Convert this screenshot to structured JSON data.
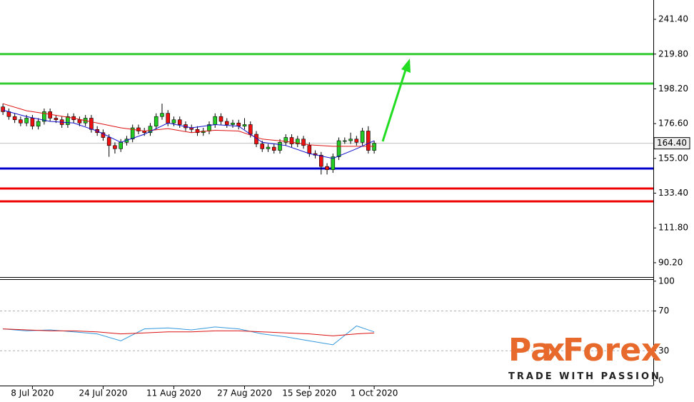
{
  "chart_data": [
    {
      "type": "candlestick",
      "xlim": [
        -0.5,
        110
      ],
      "xticks": [
        {
          "value": 5,
          "label": "8 Jul 2020"
        },
        {
          "value": 17,
          "label": "24 Jul 2020"
        },
        {
          "value": 29,
          "label": "11 Aug 2020"
        },
        {
          "value": 41,
          "label": "27 Aug 2020"
        },
        {
          "value": 52,
          "label": "15 Sep 2020"
        },
        {
          "value": 63,
          "label": "1 Oct 2020"
        }
      ],
      "ylim": [
        81.3,
        253.4
      ],
      "yticks": [
        {
          "value": 90.2,
          "label": "90.20"
        },
        {
          "value": 111.8,
          "label": "111.80"
        },
        {
          "value": 133.4,
          "label": "133.40"
        },
        {
          "value": 155,
          "label": "155.00"
        },
        {
          "value": 176.6,
          "label": "176.60"
        },
        {
          "value": 198.2,
          "label": "198.20"
        },
        {
          "value": 219.8,
          "label": "219.80"
        },
        {
          "value": 241.4,
          "label": "241.40"
        }
      ],
      "up_color": "#22cc22",
      "down_color": "#ee1111",
      "open": [
        187,
        184,
        181,
        179,
        177,
        180,
        175,
        178,
        184,
        180,
        179,
        176,
        181,
        179,
        177,
        180,
        173,
        171,
        168,
        163,
        161,
        165,
        167,
        174,
        172,
        171,
        175,
        181,
        183,
        177,
        179,
        176,
        174,
        173,
        171,
        172,
        176,
        181,
        178,
        176,
        177,
        175,
        176,
        170,
        164,
        161,
        162,
        160,
        165,
        168,
        164,
        167,
        163,
        158,
        157,
        150,
        148,
        156,
        166,
        166,
        167,
        165,
        172,
        160
      ],
      "high": [
        189,
        186,
        183,
        181,
        182,
        182,
        180,
        186,
        186,
        182,
        181,
        183,
        183,
        181,
        182,
        182,
        175,
        173,
        170,
        165,
        167,
        169,
        176,
        176,
        174,
        177,
        183,
        189,
        185,
        181,
        181,
        178,
        176,
        175,
        174,
        178,
        183,
        183,
        180,
        179,
        179,
        180,
        178,
        172,
        166,
        164,
        164,
        167,
        170,
        170,
        169,
        169,
        165,
        160,
        159,
        152,
        158,
        168,
        168,
        171,
        169,
        174,
        175,
        166
      ],
      "low": [
        182,
        179,
        177,
        175,
        175,
        173,
        173,
        176,
        178,
        177,
        174,
        174,
        177,
        175,
        175,
        171,
        169,
        166,
        156,
        158,
        159,
        163,
        165,
        170,
        169,
        169,
        173,
        179,
        175,
        175,
        174,
        172,
        171,
        169,
        169,
        170,
        174,
        176,
        174,
        174,
        173,
        173,
        168,
        162,
        159,
        159,
        158,
        158,
        163,
        162,
        162,
        161,
        156,
        155,
        145,
        145,
        146,
        154,
        164,
        164,
        163,
        163,
        158,
        158
      ],
      "close": [
        184,
        181,
        179,
        177,
        180,
        175,
        178,
        184,
        180,
        179,
        176,
        181,
        179,
        177,
        180,
        173,
        171,
        168,
        163,
        161,
        165,
        167,
        174,
        172,
        171,
        175,
        181,
        183,
        177,
        179,
        176,
        174,
        173,
        171,
        172,
        176,
        181,
        178,
        176,
        177,
        175,
        176,
        170,
        164,
        161,
        162,
        160,
        165,
        168,
        164,
        167,
        163,
        158,
        157,
        150,
        148,
        156,
        166,
        166,
        167,
        165,
        172,
        160,
        164.4
      ],
      "series": [
        {
          "color": "#dd1111",
          "x": [
            0,
            4,
            8,
            12,
            16,
            20,
            24,
            28,
            32,
            36,
            40,
            44,
            48,
            52,
            56,
            60,
            63
          ],
          "values": [
            189,
            184.6,
            182.4,
            180,
            177,
            174,
            172,
            173.5,
            171,
            172.5,
            172,
            167,
            165.6,
            163.4,
            162.5,
            162.5,
            162.5
          ]
        },
        {
          "color": "#1111cc",
          "x": [
            0,
            4,
            8,
            12,
            16,
            20,
            24,
            28,
            32,
            36,
            40,
            44,
            48,
            52,
            56,
            60,
            63
          ],
          "values": [
            185,
            181,
            178,
            177,
            172,
            165,
            170,
            177,
            174,
            176,
            175,
            165,
            163,
            158,
            155,
            161,
            166
          ]
        }
      ],
      "levels": [
        {
          "value": 219.8,
          "color": "#33cc33"
        },
        {
          "value": 201.5,
          "color": "#33cc33"
        },
        {
          "value": 148.7,
          "color": "#0000cc"
        },
        {
          "value": 136.3,
          "color": "#ee0000"
        },
        {
          "value": 128.3,
          "color": "#ee0000"
        }
      ],
      "last_price": {
        "value": 164.4,
        "label": "164.40"
      }
    },
    {
      "type": "line",
      "xlim": [
        -0.5,
        110
      ],
      "ylim": [
        -5,
        102
      ],
      "yticks": [
        0,
        30,
        70,
        100
      ],
      "dashed_levels": [
        30,
        70
      ],
      "series": [
        {
          "color": "#3399dd",
          "x": [
            0,
            4,
            8,
            12,
            16,
            20,
            24,
            28,
            32,
            36,
            40,
            44,
            48,
            52,
            56,
            60,
            63
          ],
          "values": [
            52,
            50,
            51,
            49,
            47,
            40,
            52,
            53,
            51,
            54,
            52,
            47,
            44,
            40,
            36,
            55,
            49
          ]
        },
        {
          "color": "#dd1111",
          "x": [
            0,
            4,
            8,
            12,
            16,
            20,
            24,
            28,
            32,
            36,
            40,
            44,
            48,
            52,
            56,
            60,
            63
          ],
          "values": [
            52,
            51,
            50,
            50,
            49,
            47,
            48,
            49,
            49,
            50,
            50,
            49,
            48,
            47,
            45,
            47,
            48
          ]
        }
      ]
    }
  ],
  "logo": {
    "part1": "Pa",
    "part2": "x",
    "part3": "Forex",
    "tagline": "TRADE WITH PASSION"
  }
}
